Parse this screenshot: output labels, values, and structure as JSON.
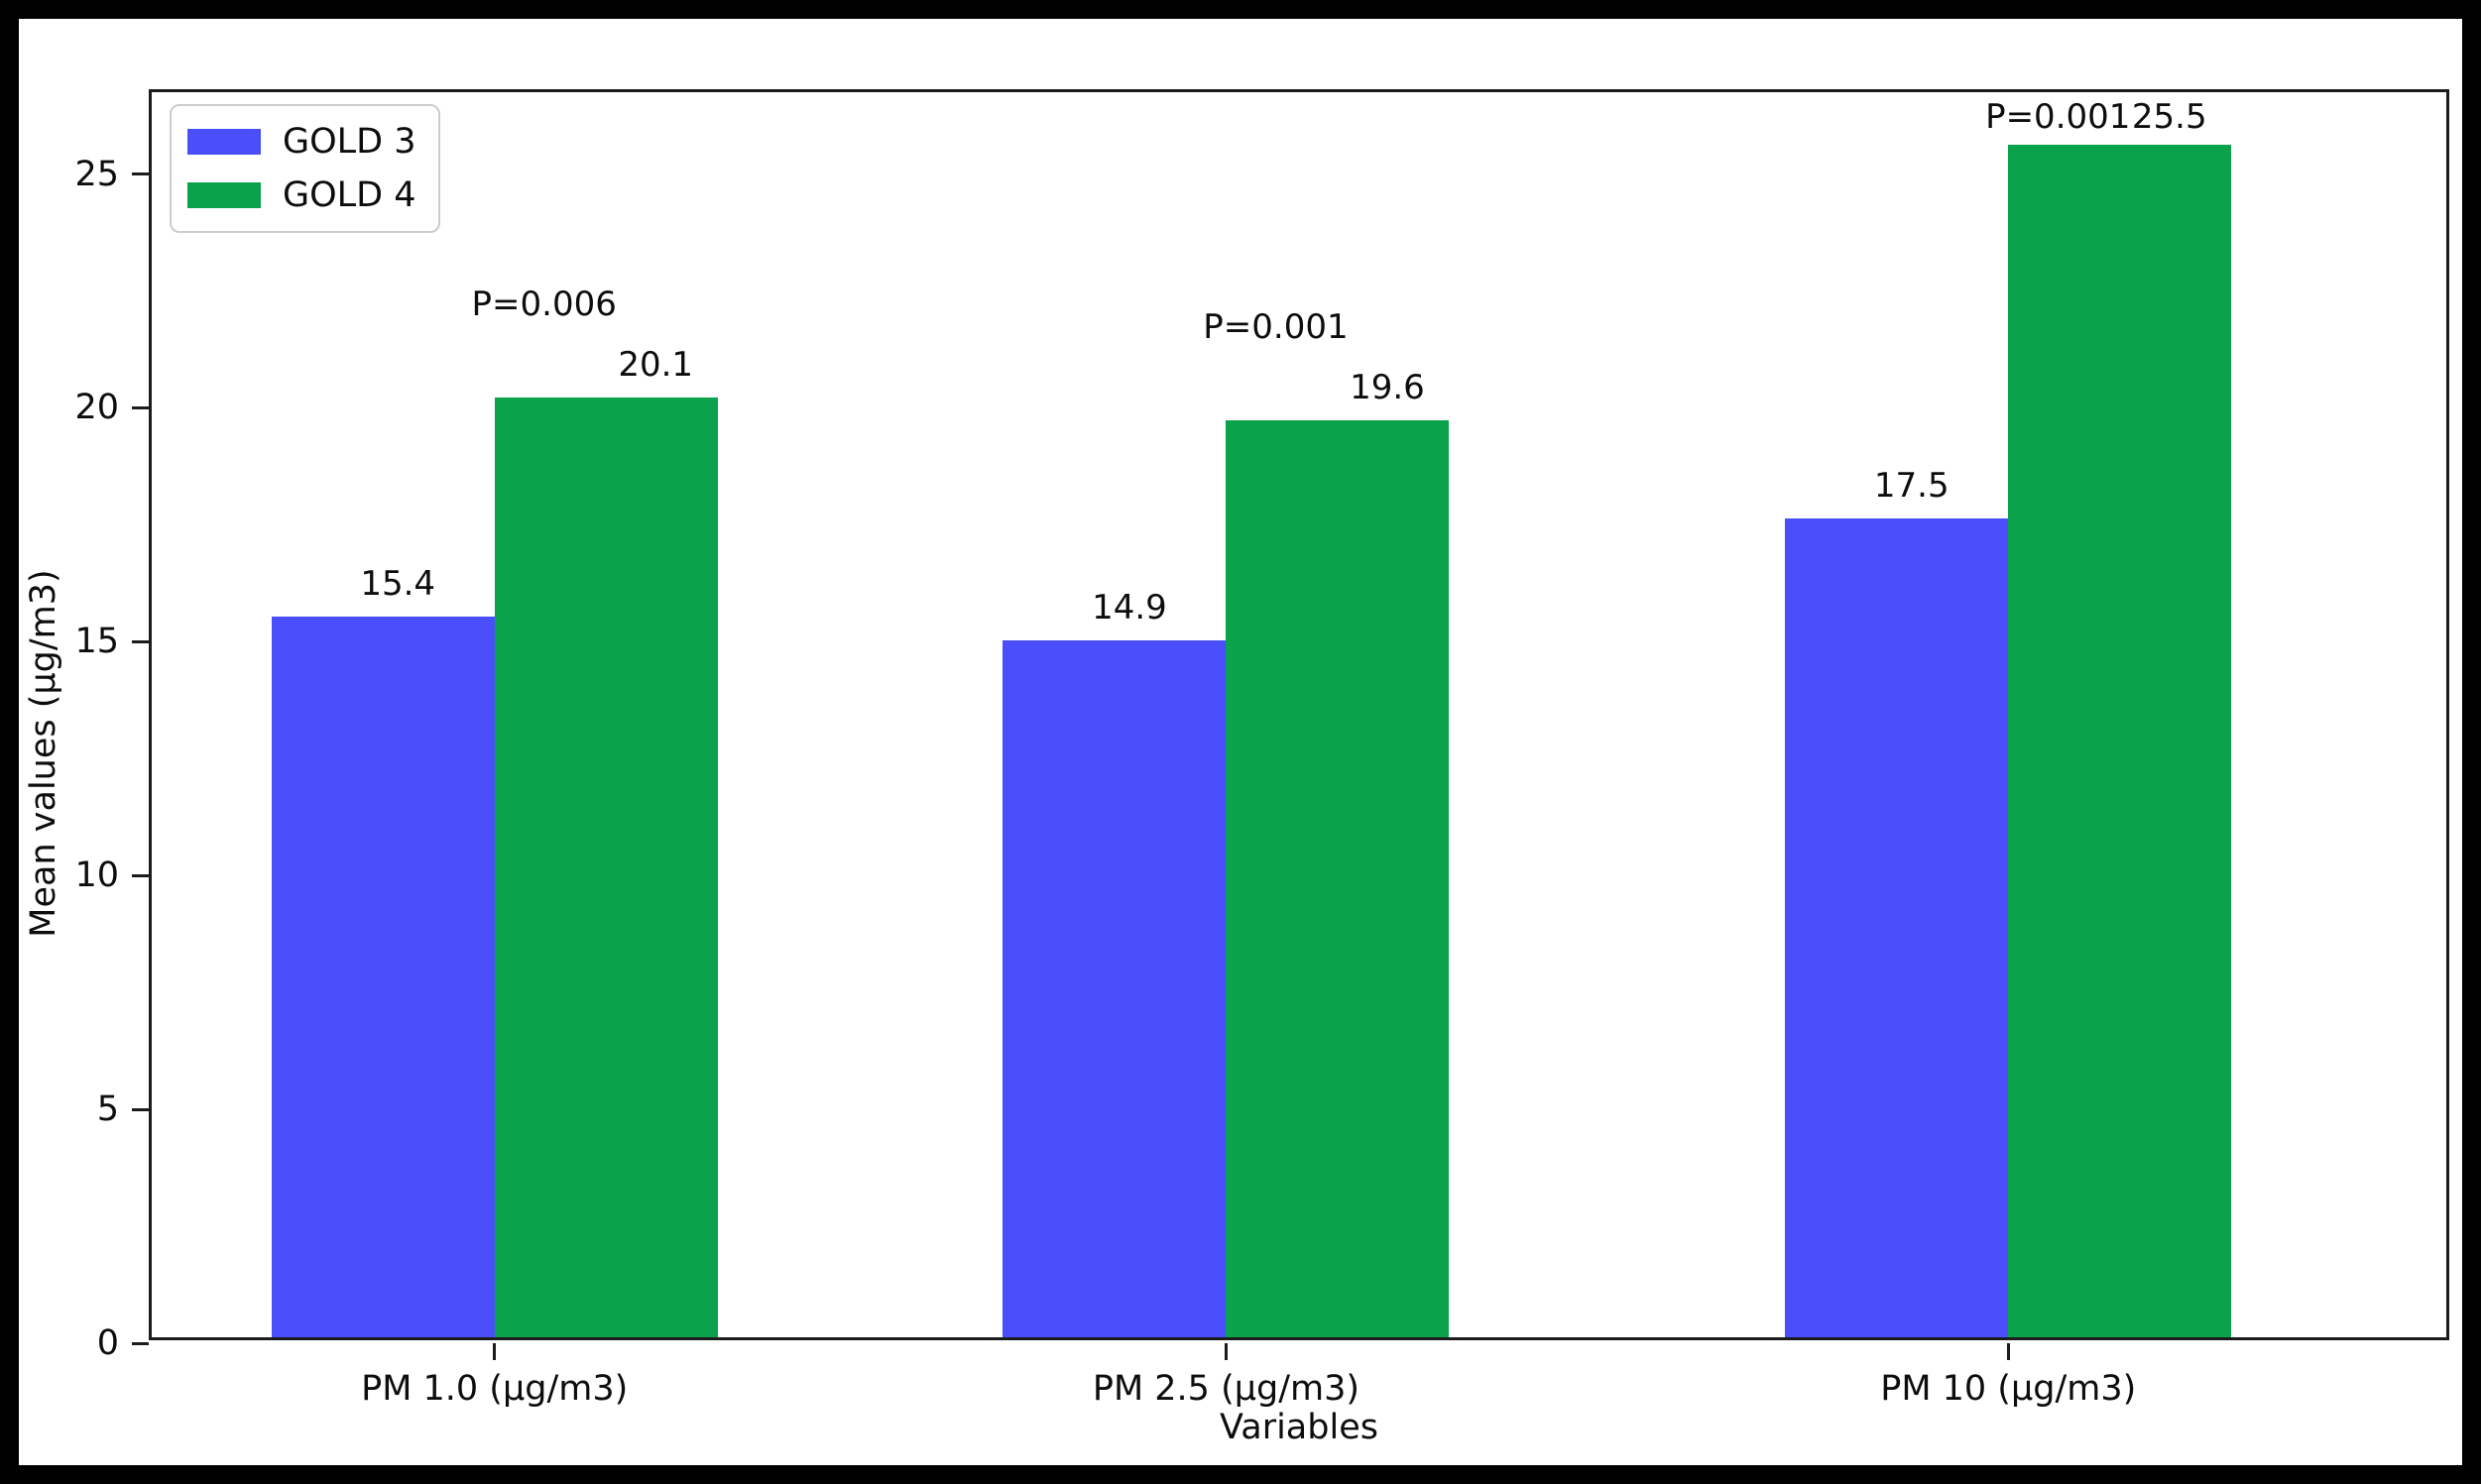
{
  "chart_data": {
    "type": "bar",
    "title": "",
    "xlabel": "Variables",
    "ylabel": "Mean values (μg/m3)",
    "categories": [
      "PM 1.0 (μg/m3)",
      "PM 2.5 (μg/m3)",
      "PM 10 (μg/m3)"
    ],
    "series": [
      {
        "name": "GOLD 3",
        "color": "#4a4efb",
        "values": [
          15.4,
          14.9,
          17.5
        ]
      },
      {
        "name": "GOLD 4",
        "color": "#0aa24a",
        "values": [
          20.1,
          19.6,
          25.5
        ]
      }
    ],
    "p_values": [
      "P=0.006",
      "P=0.001",
      "P=0.001"
    ],
    "bar_value_labels": [
      "15.4",
      "20.1",
      "14.9",
      "19.6",
      "17.5",
      "25.5"
    ],
    "yticks": [
      "0",
      "5",
      "10",
      "15",
      "20",
      "25"
    ],
    "ylim": [
      0,
      26.75
    ],
    "grid": false,
    "legend_position": "upper left",
    "frame_color": "#000000",
    "spine_color": "#1c1c1c"
  }
}
